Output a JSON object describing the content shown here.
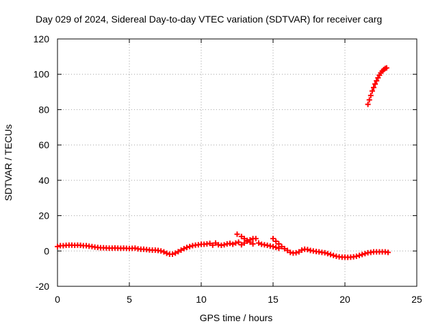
{
  "chart_data": {
    "type": "scatter",
    "title": "Day 029 of 2024, Sidereal Day-to-day VTEC variation (SDTVAR) for receiver carg",
    "xlabel": "GPS time / hours",
    "ylabel": "SDTVAR / TECUs",
    "xlim": [
      0,
      25
    ],
    "ylim": [
      -20,
      120
    ],
    "xticks": [
      "0",
      "5",
      "10",
      "15",
      "20",
      "25"
    ],
    "yticks": [
      "-20",
      "0",
      "20",
      "40",
      "60",
      "80",
      "100",
      "120"
    ],
    "grid": true,
    "colors": {
      "series": "#ff0000",
      "grid": "#a0a0a0",
      "axis": "#000000"
    },
    "series": [
      {
        "marker": "plus",
        "points": [
          [
            0.0,
            2.5
          ],
          [
            0.2,
            3.0
          ],
          [
            0.4,
            3.0
          ],
          [
            0.6,
            3.2
          ],
          [
            0.8,
            3.3
          ],
          [
            1.0,
            3.3
          ],
          [
            1.2,
            3.2
          ],
          [
            1.4,
            3.3
          ],
          [
            1.6,
            3.2
          ],
          [
            1.8,
            3.0
          ],
          [
            2.0,
            3.0
          ],
          [
            2.2,
            2.7
          ],
          [
            2.4,
            2.5
          ],
          [
            2.6,
            2.2
          ],
          [
            2.8,
            2.0
          ],
          [
            3.0,
            1.8
          ],
          [
            3.2,
            1.8
          ],
          [
            3.4,
            1.7
          ],
          [
            3.6,
            1.6
          ],
          [
            3.8,
            1.6
          ],
          [
            4.0,
            1.7
          ],
          [
            4.2,
            1.6
          ],
          [
            4.4,
            1.5
          ],
          [
            4.6,
            1.6
          ],
          [
            4.8,
            1.5
          ],
          [
            5.0,
            1.4
          ],
          [
            5.2,
            1.5
          ],
          [
            5.4,
            1.6
          ],
          [
            5.6,
            1.2
          ],
          [
            5.8,
            1.0
          ],
          [
            6.0,
            1.0
          ],
          [
            6.2,
            0.8
          ],
          [
            6.4,
            0.6
          ],
          [
            6.6,
            0.5
          ],
          [
            6.8,
            0.5
          ],
          [
            7.0,
            0.3
          ],
          [
            7.2,
            0.0
          ],
          [
            7.4,
            -0.5
          ],
          [
            7.6,
            -1.3
          ],
          [
            7.8,
            -1.8
          ],
          [
            8.0,
            -1.8
          ],
          [
            8.2,
            -1.2
          ],
          [
            8.4,
            -0.4
          ],
          [
            8.6,
            0.5
          ],
          [
            8.8,
            1.3
          ],
          [
            9.0,
            2.0
          ],
          [
            9.2,
            2.5
          ],
          [
            9.4,
            3.0
          ],
          [
            9.6,
            3.3
          ],
          [
            9.8,
            3.5
          ],
          [
            10.0,
            3.8
          ],
          [
            10.2,
            3.8
          ],
          [
            10.4,
            4.0
          ],
          [
            10.6,
            4.3
          ],
          [
            10.8,
            3.3
          ],
          [
            11.0,
            4.5
          ],
          [
            11.2,
            3.5
          ],
          [
            11.4,
            3.2
          ],
          [
            11.6,
            3.5
          ],
          [
            11.8,
            4.0
          ],
          [
            12.0,
            4.3
          ],
          [
            12.2,
            3.8
          ],
          [
            12.4,
            4.5
          ],
          [
            12.6,
            5.0
          ],
          [
            12.5,
            9.5
          ],
          [
            12.8,
            8.2
          ],
          [
            13.0,
            7.0
          ],
          [
            13.2,
            6.0
          ],
          [
            13.4,
            5.0
          ],
          [
            13.6,
            4.0
          ],
          [
            12.8,
            3.5
          ],
          [
            13.0,
            4.5
          ],
          [
            13.2,
            5.5
          ],
          [
            13.4,
            6.3
          ],
          [
            13.6,
            7.0
          ],
          [
            13.8,
            7.0
          ],
          [
            14.0,
            4.5
          ],
          [
            14.2,
            3.8
          ],
          [
            14.4,
            3.5
          ],
          [
            14.6,
            3.2
          ],
          [
            14.8,
            2.8
          ],
          [
            15.0,
            2.5
          ],
          [
            15.2,
            2.0
          ],
          [
            15.4,
            1.5
          ],
          [
            15.0,
            7.0
          ],
          [
            15.2,
            5.5
          ],
          [
            15.4,
            4.0
          ],
          [
            15.6,
            2.5
          ],
          [
            15.8,
            1.3
          ],
          [
            16.0,
            0.3
          ],
          [
            16.2,
            -0.8
          ],
          [
            16.4,
            -1.2
          ],
          [
            16.6,
            -1.0
          ],
          [
            16.8,
            -0.5
          ],
          [
            17.0,
            0.5
          ],
          [
            17.2,
            1.0
          ],
          [
            17.4,
            0.8
          ],
          [
            17.6,
            0.3
          ],
          [
            17.8,
            0.0
          ],
          [
            18.0,
            -0.3
          ],
          [
            18.2,
            -0.5
          ],
          [
            18.4,
            -0.8
          ],
          [
            18.6,
            -1.0
          ],
          [
            18.8,
            -1.5
          ],
          [
            19.0,
            -2.0
          ],
          [
            19.2,
            -2.5
          ],
          [
            19.4,
            -3.0
          ],
          [
            19.6,
            -3.3
          ],
          [
            19.8,
            -3.5
          ],
          [
            20.0,
            -3.5
          ],
          [
            20.2,
            -3.6
          ],
          [
            20.4,
            -3.5
          ],
          [
            20.6,
            -3.3
          ],
          [
            20.8,
            -3.0
          ],
          [
            21.0,
            -2.5
          ],
          [
            21.2,
            -2.0
          ],
          [
            21.4,
            -1.5
          ],
          [
            21.6,
            -1.0
          ],
          [
            21.8,
            -0.8
          ],
          [
            22.0,
            -0.5
          ],
          [
            22.2,
            -0.5
          ],
          [
            22.4,
            -0.5
          ],
          [
            22.6,
            -0.5
          ],
          [
            22.8,
            -0.5
          ],
          [
            23.0,
            -0.8
          ],
          [
            21.6,
            83.0
          ],
          [
            21.7,
            85.5
          ],
          [
            21.8,
            88.0
          ],
          [
            21.9,
            90.5
          ],
          [
            22.0,
            92.5
          ],
          [
            22.1,
            94.5
          ],
          [
            22.2,
            96.3
          ],
          [
            22.3,
            98.0
          ],
          [
            22.4,
            99.5
          ],
          [
            22.5,
            100.8
          ],
          [
            22.6,
            101.8
          ],
          [
            22.7,
            102.7
          ],
          [
            22.8,
            103.3
          ],
          [
            22.9,
            103.6
          ]
        ]
      }
    ]
  }
}
